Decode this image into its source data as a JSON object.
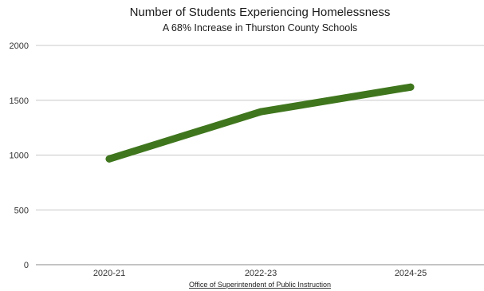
{
  "chart": {
    "title": "Number of Students Experiencing Homelessness",
    "subtitle": "A 68% Increase in Thurston County Schools",
    "source": "Office of Superintendent of Public Instruction"
  },
  "chart_data": {
    "type": "line",
    "title": "Number of Students Experiencing Homelessness",
    "subtitle": "A 68% Increase in Thurston County Schools",
    "categories": [
      "2020-21",
      "2022-23",
      "2024-25"
    ],
    "series": [
      {
        "values": [
          965,
          1395,
          1620
        ],
        "color": "#3f761d"
      }
    ],
    "y_ticks": [
      "0",
      "500",
      "1000",
      "1500",
      "2000"
    ],
    "ylim": [
      0,
      2000
    ],
    "grid": true,
    "legend": "none",
    "source": "Office of Superintendent of Public Instruction"
  }
}
